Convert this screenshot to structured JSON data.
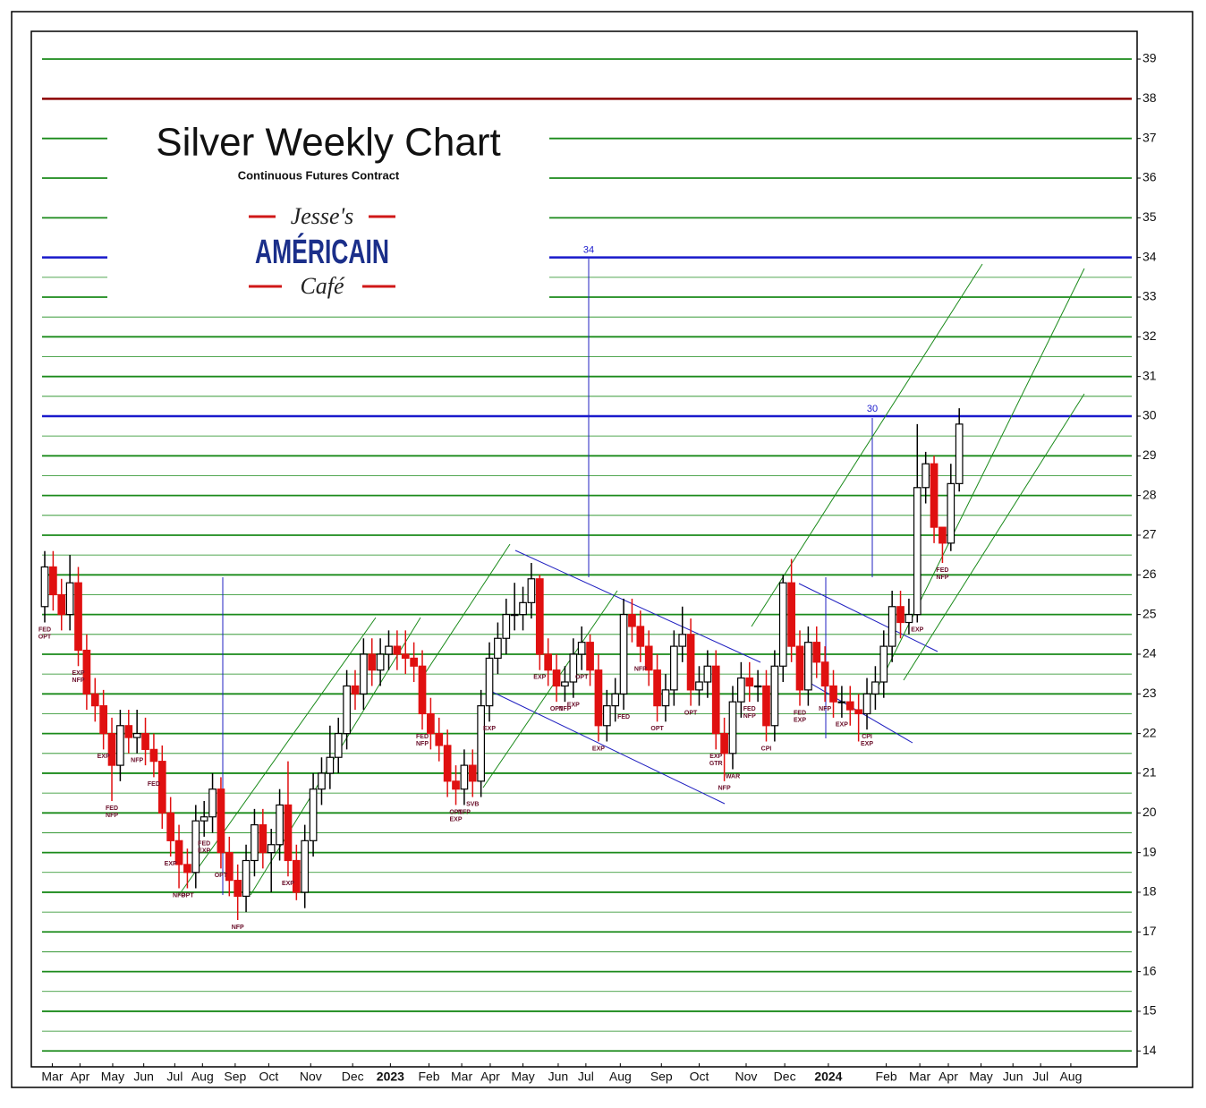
{
  "chart_data": {
    "type": "candlestick",
    "title": "Silver Weekly Chart",
    "subtitle": "Continuous Futures Contract",
    "logo": {
      "top": "Jesse's",
      "middle": "AMÉRICAIN",
      "bottom": "Café"
    },
    "ylim": [
      13.6,
      39.7
    ],
    "xlim": [
      -1.6,
      130.2
    ],
    "yticks": [
      14,
      15,
      16,
      17,
      18,
      19,
      20,
      21,
      22,
      23,
      24,
      25,
      26,
      27,
      28,
      29,
      30,
      31,
      32,
      33,
      34,
      35,
      36,
      37,
      38,
      39
    ],
    "minor_grid": [
      14.5,
      15.5,
      16.5,
      17.5,
      18.5,
      19.5,
      20.5,
      21.5,
      22.5,
      23.5,
      24.5,
      25.5,
      26.5,
      27.5,
      28.5,
      29.5,
      30.5,
      31.5,
      32.5,
      33.5
    ],
    "grid": true,
    "grid_color": "#1a8a1a",
    "levels": [
      {
        "value": 38,
        "color": "#8b0000"
      },
      {
        "value": 34,
        "color": "#1a1acc",
        "label": "34"
      },
      {
        "value": 30,
        "color": "#1a1acc",
        "label": "30"
      }
    ],
    "xticks": [
      {
        "value": 0.9,
        "label": "Mar"
      },
      {
        "value": 4.2,
        "label": "Apr"
      },
      {
        "value": 8.1,
        "label": "May"
      },
      {
        "value": 11.8,
        "label": "Jun"
      },
      {
        "value": 15.5,
        "label": "Jul"
      },
      {
        "value": 18.8,
        "label": "Aug"
      },
      {
        "value": 22.7,
        "label": "Sep"
      },
      {
        "value": 26.7,
        "label": "Oct"
      },
      {
        "value": 31.7,
        "label": "Nov"
      },
      {
        "value": 36.7,
        "label": "Dec"
      },
      {
        "value": 41.2,
        "label": "2023"
      },
      {
        "value": 45.8,
        "label": "Feb"
      },
      {
        "value": 49.7,
        "label": "Mar"
      },
      {
        "value": 53.1,
        "label": "Apr"
      },
      {
        "value": 57.0,
        "label": "May"
      },
      {
        "value": 61.2,
        "label": "Jun"
      },
      {
        "value": 64.5,
        "label": "Jul"
      },
      {
        "value": 68.6,
        "label": "Aug"
      },
      {
        "value": 73.5,
        "label": "Sep"
      },
      {
        "value": 78.0,
        "label": "Oct"
      },
      {
        "value": 83.6,
        "label": "Nov"
      },
      {
        "value": 88.2,
        "label": "Dec"
      },
      {
        "value": 93.4,
        "label": "2024"
      },
      {
        "value": 100.3,
        "label": "Feb"
      },
      {
        "value": 104.3,
        "label": "Mar"
      },
      {
        "value": 107.7,
        "label": "Apr"
      },
      {
        "value": 111.6,
        "label": "May"
      },
      {
        "value": 115.4,
        "label": "Jun"
      },
      {
        "value": 118.7,
        "label": "Jul"
      },
      {
        "value": 122.3,
        "label": "Aug"
      }
    ],
    "up_color": "#ffffff",
    "down_color": "#e01010",
    "open": [
      25.2,
      26.2,
      25.5,
      25.0,
      25.8,
      24.1,
      23.0,
      22.7,
      22.0,
      21.2,
      22.2,
      21.9,
      22.0,
      21.6,
      21.3,
      20.0,
      19.3,
      18.7,
      18.5,
      19.8,
      19.9,
      20.6,
      19.0,
      18.3,
      17.9,
      18.8,
      19.7,
      19.0,
      19.2,
      20.2,
      18.8,
      18.0,
      19.3,
      20.6,
      21.0,
      21.4,
      22.0,
      23.2,
      23.0,
      24.0,
      23.6,
      24.0,
      24.2,
      24.0,
      23.9,
      23.7,
      22.5,
      22.0,
      21.7,
      20.8,
      20.6,
      21.2,
      20.8,
      22.7,
      23.9,
      24.4,
      25.0,
      25.0,
      25.3,
      25.9,
      24.0,
      23.6,
      23.2,
      23.3,
      24.0,
      24.3,
      23.6,
      22.2,
      22.7,
      23.0,
      25.0,
      24.7,
      24.2,
      23.6,
      22.7,
      23.1,
      24.2,
      24.5,
      23.1,
      23.3,
      23.7,
      22.0,
      21.5,
      22.8,
      23.4,
      23.2,
      23.2,
      22.2,
      23.7,
      25.8,
      24.2,
      23.1,
      24.3,
      23.8,
      23.2,
      22.8,
      22.8,
      22.6,
      22.5,
      23.0,
      23.3,
      24.2,
      25.2,
      24.8,
      25.0,
      28.2,
      28.8,
      27.2,
      26.8,
      28.3
    ],
    "high": [
      26.6,
      26.6,
      25.9,
      26.5,
      26.2,
      24.5,
      23.4,
      23.1,
      22.4,
      22.6,
      22.6,
      22.6,
      22.4,
      22.0,
      21.7,
      20.4,
      19.7,
      19.1,
      20.2,
      20.3,
      21.0,
      20.9,
      19.4,
      18.7,
      19.2,
      20.1,
      20.1,
      19.6,
      20.6,
      21.3,
      19.2,
      19.7,
      21.0,
      21.4,
      22.2,
      22.4,
      23.6,
      23.6,
      24.4,
      24.4,
      24.4,
      24.6,
      24.6,
      24.6,
      24.3,
      24.1,
      22.9,
      22.4,
      22.1,
      21.2,
      21.6,
      21.6,
      23.1,
      24.3,
      24.8,
      25.4,
      25.8,
      25.7,
      26.3,
      26.0,
      24.4,
      24.0,
      23.7,
      24.4,
      24.7,
      24.5,
      24.0,
      23.1,
      23.4,
      25.4,
      25.4,
      25.1,
      24.6,
      24.0,
      23.5,
      24.6,
      25.2,
      24.9,
      23.7,
      24.1,
      24.1,
      22.4,
      23.2,
      23.8,
      23.8,
      23.6,
      23.6,
      24.1,
      26.0,
      26.4,
      24.6,
      24.7,
      24.7,
      24.2,
      23.6,
      23.2,
      23.2,
      23.0,
      23.4,
      23.7,
      24.6,
      25.6,
      25.6,
      25.4,
      29.8,
      29.1,
      29.0,
      27.2,
      28.8,
      30.2
    ],
    "low": [
      24.8,
      25.1,
      24.6,
      24.6,
      23.7,
      22.6,
      22.3,
      21.6,
      20.3,
      20.8,
      21.5,
      21.5,
      21.2,
      20.9,
      19.6,
      18.9,
      18.1,
      18.1,
      18.1,
      19.4,
      19.5,
      18.6,
      17.9,
      17.3,
      17.5,
      18.4,
      18.6,
      18.0,
      18.8,
      18.4,
      17.8,
      17.6,
      18.9,
      20.2,
      20.6,
      21.0,
      21.6,
      22.6,
      22.6,
      23.2,
      23.2,
      23.6,
      23.6,
      23.5,
      23.3,
      22.1,
      21.6,
      21.3,
      20.4,
      20.2,
      20.2,
      20.4,
      20.4,
      22.3,
      23.5,
      24.0,
      24.6,
      24.6,
      24.9,
      23.6,
      23.2,
      22.8,
      22.8,
      22.9,
      23.6,
      23.2,
      21.8,
      21.8,
      22.3,
      22.6,
      24.3,
      23.8,
      23.2,
      22.3,
      22.3,
      22.7,
      23.8,
      22.7,
      22.7,
      22.9,
      21.6,
      20.8,
      21.1,
      22.4,
      22.8,
      22.8,
      21.8,
      21.8,
      23.3,
      23.8,
      22.7,
      22.7,
      23.4,
      22.8,
      22.4,
      22.4,
      22.2,
      21.8,
      22.1,
      22.6,
      22.9,
      23.8,
      24.4,
      24.5,
      24.8,
      27.8,
      26.8,
      26.3,
      26.6,
      28.1
    ],
    "close": [
      26.2,
      25.5,
      25.0,
      25.8,
      24.1,
      23.0,
      22.7,
      22.0,
      21.2,
      22.2,
      21.9,
      22.0,
      21.6,
      21.3,
      20.0,
      19.3,
      18.7,
      18.5,
      19.8,
      19.9,
      20.6,
      19.0,
      18.3,
      17.9,
      18.8,
      19.7,
      19.0,
      19.2,
      20.2,
      18.8,
      18.0,
      19.3,
      20.6,
      21.0,
      21.4,
      22.0,
      23.2,
      23.0,
      24.0,
      23.6,
      24.0,
      24.2,
      24.0,
      23.9,
      23.7,
      22.5,
      22.0,
      21.7,
      20.8,
      20.6,
      21.2,
      20.8,
      22.7,
      23.9,
      24.4,
      25.0,
      25.0,
      25.3,
      25.9,
      24.0,
      23.6,
      23.2,
      23.3,
      24.0,
      24.3,
      23.6,
      22.2,
      22.7,
      23.0,
      25.0,
      24.7,
      24.2,
      23.6,
      22.7,
      23.1,
      24.2,
      24.5,
      23.1,
      23.3,
      23.7,
      22.0,
      21.5,
      22.8,
      23.4,
      23.2,
      23.2,
      22.2,
      23.7,
      25.8,
      24.2,
      23.1,
      24.3,
      23.8,
      23.2,
      22.8,
      22.8,
      22.6,
      22.5,
      23.0,
      23.3,
      24.2,
      25.2,
      24.8,
      25.0,
      28.2,
      28.8,
      27.2,
      26.8,
      28.3,
      29.8
    ],
    "annotations": [
      {
        "x": 0,
        "text": "FED"
      },
      {
        "x": 0,
        "text": "OPT"
      },
      {
        "x": 4,
        "text": "EXP"
      },
      {
        "x": 4,
        "text": "NFP"
      },
      {
        "x": 7,
        "text": "EXP"
      },
      {
        "x": 8,
        "text": "FED"
      },
      {
        "x": 8,
        "text": "NFP"
      },
      {
        "x": 11,
        "text": "NFP"
      },
      {
        "x": 13,
        "text": "FED"
      },
      {
        "x": 15,
        "text": "EXP"
      },
      {
        "x": 16,
        "text": "NFP"
      },
      {
        "x": 17,
        "text": "OPT"
      },
      {
        "x": 19,
        "text": "FED"
      },
      {
        "x": 19,
        "text": "EXP"
      },
      {
        "x": 21,
        "text": "OPT"
      },
      {
        "x": 23,
        "text": "NFP"
      },
      {
        "x": 29,
        "text": "EXP"
      },
      {
        "x": 45,
        "text": "FED"
      },
      {
        "x": 45,
        "text": "NFP"
      },
      {
        "x": 49,
        "text": "OPT"
      },
      {
        "x": 49,
        "text": "EXP"
      },
      {
        "x": 50,
        "text": "NFP"
      },
      {
        "x": 51,
        "text": "SVB"
      },
      {
        "x": 53,
        "text": "EXP"
      },
      {
        "x": 59,
        "text": "EXP"
      },
      {
        "x": 61,
        "text": "OPT"
      },
      {
        "x": 62,
        "text": "NFP"
      },
      {
        "x": 63,
        "text": "EXP"
      },
      {
        "x": 64,
        "text": "OPT"
      },
      {
        "x": 66,
        "text": "EXP"
      },
      {
        "x": 69,
        "text": "FED"
      },
      {
        "x": 71,
        "text": "NFP"
      },
      {
        "x": 73,
        "text": "OPT"
      },
      {
        "x": 77,
        "text": "OPT"
      },
      {
        "x": 80,
        "text": "EXP"
      },
      {
        "x": 80,
        "text": "GTR"
      },
      {
        "x": 81,
        "text": "NFP"
      },
      {
        "x": 82,
        "text": "WAR"
      },
      {
        "x": 84,
        "text": "FED"
      },
      {
        "x": 84,
        "text": "NFP"
      },
      {
        "x": 86,
        "text": "CPI"
      },
      {
        "x": 90,
        "text": "FED"
      },
      {
        "x": 90,
        "text": "EXP"
      },
      {
        "x": 93,
        "text": "NFP"
      },
      {
        "x": 95,
        "text": "EXP"
      },
      {
        "x": 98,
        "text": "CPI"
      },
      {
        "x": 98,
        "text": "EXP"
      },
      {
        "x": 104,
        "text": "EXP"
      },
      {
        "x": 107,
        "text": "FED"
      },
      {
        "x": 107,
        "text": "NFP"
      }
    ]
  }
}
